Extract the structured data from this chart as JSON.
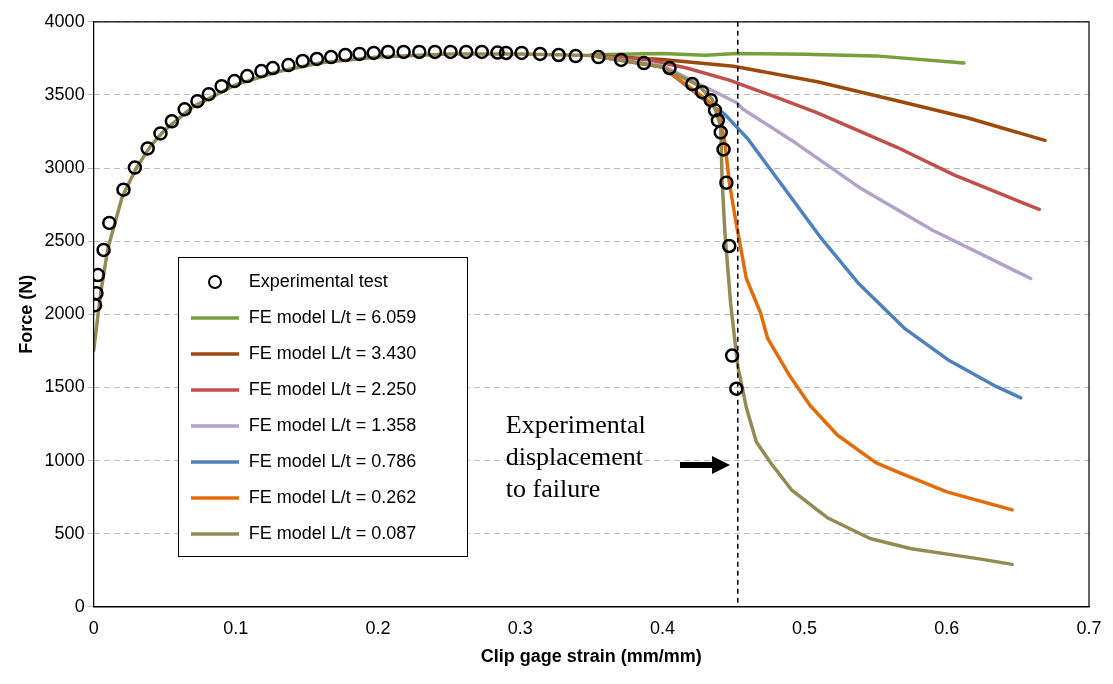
{
  "chart_data": {
    "type": "line",
    "xlabel": "Clip gage strain (mm/mm)",
    "ylabel": "Force (N)",
    "xlim": [
      0,
      0.7
    ],
    "xticks": [
      0,
      0.1,
      0.2,
      0.3,
      0.4,
      0.5,
      0.6,
      0.7
    ],
    "ylim": [
      0,
      4000
    ],
    "yticks": [
      0,
      500,
      1000,
      1500,
      2000,
      2500,
      3000,
      3500,
      4000
    ],
    "grid": "y",
    "legend": "bottom left",
    "marker": "none",
    "ref_lines": [
      {
        "axis": "x",
        "value": 0.453,
        "color": "#000000",
        "line_style": "dashed"
      }
    ],
    "annotations": [
      "Experimental displacement to failure"
    ],
    "series": [
      {
        "name": "Experimental test",
        "type": "scatter",
        "marker": "circle",
        "color": "#000000",
        "x": [
          0.001,
          0.002,
          0.003,
          0.007,
          0.011,
          0.021,
          0.029,
          0.038,
          0.047,
          0.055,
          0.064,
          0.073,
          0.081,
          0.09,
          0.099,
          0.108,
          0.118,
          0.126,
          0.137,
          0.147,
          0.157,
          0.167,
          0.177,
          0.187,
          0.197,
          0.207,
          0.218,
          0.229,
          0.24,
          0.251,
          0.262,
          0.273,
          0.284,
          0.29,
          0.301,
          0.314,
          0.327,
          0.339,
          0.355,
          0.371,
          0.387,
          0.405,
          0.421,
          0.428,
          0.434,
          0.437,
          0.439,
          0.441,
          0.443,
          0.445,
          0.447,
          0.449,
          0.452
        ],
        "values": [
          2062,
          2144,
          2268,
          2440,
          2625,
          2852,
          3003,
          3134,
          3237,
          3320,
          3402,
          3457,
          3505,
          3560,
          3595,
          3629,
          3663,
          3684,
          3704,
          3732,
          3746,
          3759,
          3773,
          3780,
          3787,
          3794,
          3794,
          3794,
          3794,
          3794,
          3794,
          3794,
          3790,
          3787,
          3787,
          3780,
          3773,
          3766,
          3759,
          3739,
          3718,
          3684,
          3574,
          3519,
          3464,
          3395,
          3326,
          3244,
          3127,
          2900,
          2467,
          1718,
          1491
        ]
      },
      {
        "name": "FE model L/t = 6.059",
        "color": "#77a03c",
        "x": [
          0.35,
          0.4,
          0.43,
          0.452,
          0.5,
          0.55,
          0.612
        ],
        "values": [
          3775,
          3783,
          3771,
          3783,
          3778,
          3767,
          3719
        ]
      },
      {
        "name": "FE model L/t = 3.430",
        "color": "#9c4a0c",
        "x": [
          0.35,
          0.4,
          0.45,
          0.509,
          0.565,
          0.615,
          0.669
        ],
        "values": [
          3770,
          3743,
          3696,
          3590,
          3460,
          3342,
          3189
        ]
      },
      {
        "name": "FE model L/t = 2.250",
        "color": "#c0504d",
        "x": [
          0.35,
          0.39,
          0.417,
          0.447,
          0.477,
          0.509,
          0.565,
          0.605,
          0.665
        ],
        "values": [
          3770,
          3740,
          3684,
          3601,
          3495,
          3377,
          3142,
          2953,
          2717
        ]
      },
      {
        "name": "FE model L/t = 1.358",
        "color": "#b3a2c7",
        "x": [
          0.35,
          0.4,
          0.43,
          0.452,
          0.457,
          0.491,
          0.54,
          0.59,
          0.659
        ],
        "values": [
          3770,
          3700,
          3554,
          3448,
          3401,
          3189,
          2858,
          2575,
          2245
        ]
      },
      {
        "name": "FE model L/t = 0.786",
        "color": "#4f81bd",
        "x": [
          0.35,
          0.4,
          0.435,
          0.444,
          0.452,
          0.46,
          0.486,
          0.511,
          0.538,
          0.57,
          0.602,
          0.635,
          0.652
        ],
        "values": [
          3770,
          3690,
          3425,
          3366,
          3283,
          3200,
          2858,
          2528,
          2210,
          1906,
          1682,
          1505,
          1429
        ]
      },
      {
        "name": "FE model L/t = 0.262",
        "color": "#e36c0a",
        "x": [
          0.35,
          0.4,
          0.432,
          0.44,
          0.444,
          0.447,
          0.451,
          0.459,
          0.469,
          0.474,
          0.489,
          0.504,
          0.523,
          0.55,
          0.567,
          0.6,
          0.646
        ],
        "values": [
          3770,
          3690,
          3460,
          3377,
          3165,
          2906,
          2670,
          2245,
          2010,
          1835,
          1587,
          1375,
          1175,
          986,
          915,
          786,
          663
        ]
      },
      {
        "name": "FE model L/t = 0.087",
        "color": "#948a54",
        "x": [
          0,
          0.005,
          0.01,
          0.02,
          0.03,
          0.04,
          0.05,
          0.07,
          0.1,
          0.13,
          0.16,
          0.2,
          0.25,
          0.3,
          0.35,
          0.4,
          0.425,
          0.435,
          0.441,
          0.442,
          0.444,
          0.448,
          0.453,
          0.459,
          0.466,
          0.476,
          0.491,
          0.516,
          0.546,
          0.575,
          0.624,
          0.646
        ],
        "values": [
          1750,
          2150,
          2450,
          2800,
          3000,
          3150,
          3260,
          3420,
          3570,
          3660,
          3720,
          3760,
          3780,
          3780,
          3770,
          3690,
          3566,
          3472,
          3283,
          2906,
          2552,
          2071,
          1646,
          1363,
          1128,
          986,
          797,
          609,
          467,
          397,
          326,
          290
        ]
      }
    ]
  }
}
